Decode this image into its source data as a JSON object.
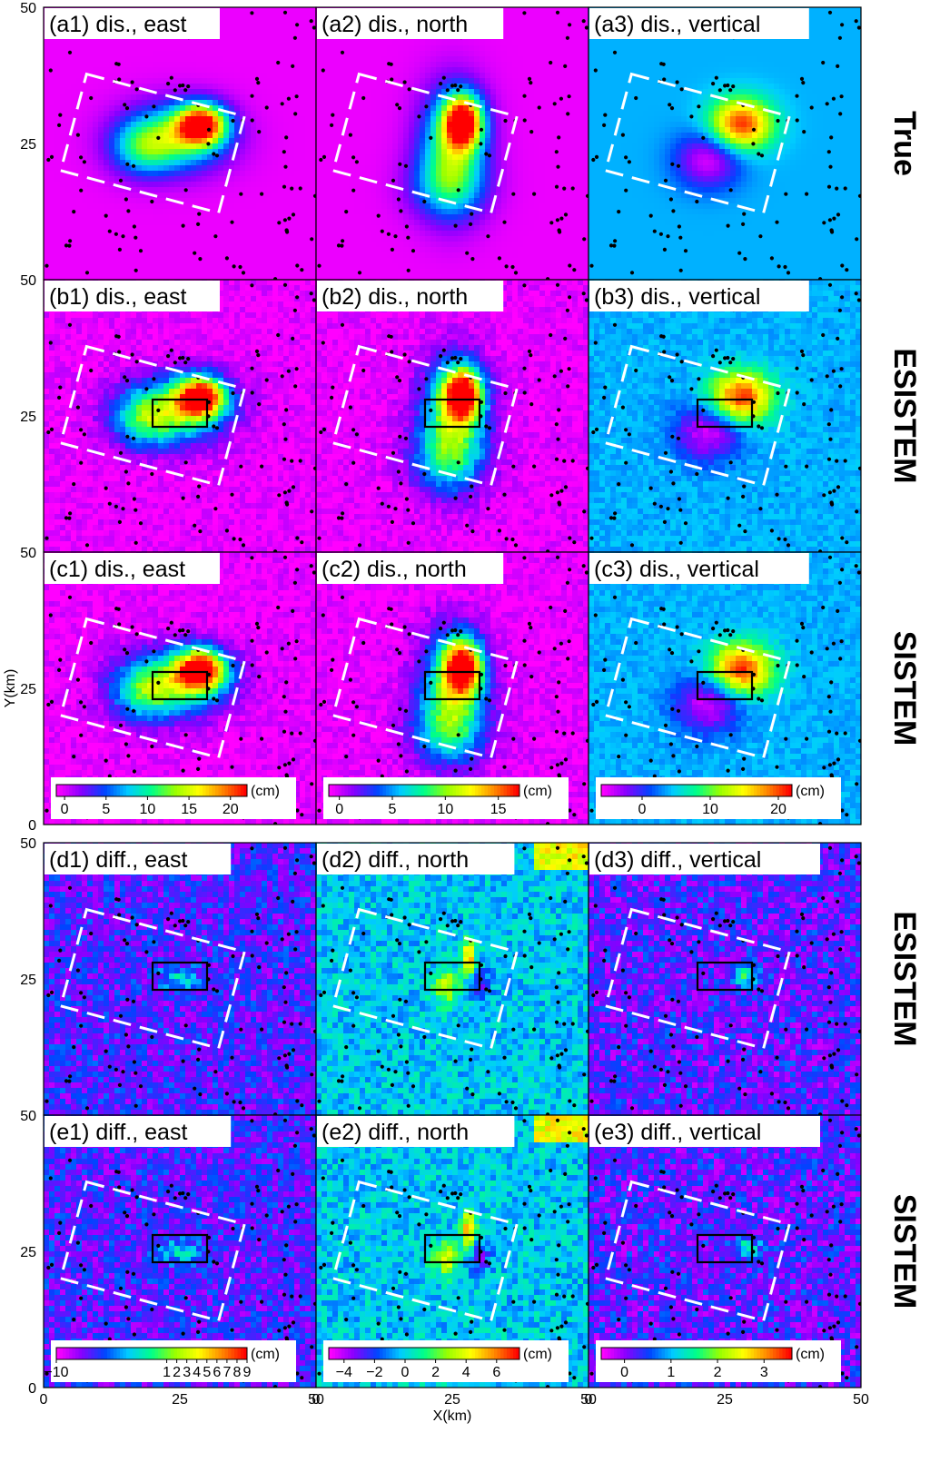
{
  "chart_data": {
    "type": "heatmap",
    "description_rows": [
      "True",
      "ESISTEM",
      "SISTEM",
      "ESISTEM",
      "SISTEM"
    ],
    "axes": {
      "xlabel": "X(km)",
      "ylabel": "Y(km)",
      "xlim": [
        0,
        50
      ],
      "ylim": [
        0,
        50
      ],
      "x_ticks": [
        "0",
        "25",
        "50"
      ],
      "y_ticks": [
        "0",
        "25",
        "50"
      ]
    },
    "panels": [
      {
        "id": "a1",
        "title": "(a1) dis., east",
        "kind": "east",
        "row": 0,
        "col": 0
      },
      {
        "id": "a2",
        "title": "(a2) dis., north",
        "kind": "north",
        "row": 0,
        "col": 1
      },
      {
        "id": "a3",
        "title": "(a3) dis., vertical",
        "kind": "vertical",
        "row": 0,
        "col": 2
      },
      {
        "id": "b1",
        "title": "(b1) dis., east",
        "kind": "east",
        "row": 1,
        "col": 0,
        "fault_box": true
      },
      {
        "id": "b2",
        "title": "(b2) dis., north",
        "kind": "north",
        "row": 1,
        "col": 1,
        "fault_box": true
      },
      {
        "id": "b3",
        "title": "(b3) dis., vertical",
        "kind": "vertical",
        "row": 1,
        "col": 2,
        "fault_box": true
      },
      {
        "id": "c1",
        "title": "(c1) dis., east",
        "kind": "east",
        "row": 2,
        "col": 0,
        "fault_box": true
      },
      {
        "id": "c2",
        "title": "(c2) dis., north",
        "kind": "north",
        "row": 2,
        "col": 1,
        "fault_box": true
      },
      {
        "id": "c3",
        "title": "(c3) dis., vertical",
        "kind": "vertical",
        "row": 2,
        "col": 2,
        "fault_box": true
      },
      {
        "id": "d1",
        "title": "(d1) diff., east",
        "kind": "diff_east",
        "row": 3,
        "col": 0,
        "fault_box": true
      },
      {
        "id": "d2",
        "title": "(d2) diff., north",
        "kind": "diff_north",
        "row": 3,
        "col": 1,
        "fault_box": true
      },
      {
        "id": "d3",
        "title": "(d3) diff., vertical",
        "kind": "diff_vertical",
        "row": 3,
        "col": 2,
        "fault_box": true
      },
      {
        "id": "e1",
        "title": "(e1) diff., east",
        "kind": "diff_east",
        "row": 4,
        "col": 0,
        "fault_box": true
      },
      {
        "id": "e2",
        "title": "(e2) diff., north",
        "kind": "diff_north",
        "row": 4,
        "col": 1,
        "fault_box": true
      },
      {
        "id": "e3",
        "title": "(e3) diff., vertical",
        "kind": "diff_vertical",
        "row": 4,
        "col": 2,
        "fault_box": true
      }
    ],
    "colorbars": [
      {
        "id": "cb_dis_east",
        "unit": "(cm)",
        "ticks": [
          0,
          5,
          10,
          15,
          20
        ],
        "range": [
          -1,
          22
        ]
      },
      {
        "id": "cb_dis_north",
        "unit": "(cm)",
        "ticks": [
          0,
          5,
          10,
          15
        ],
        "range": [
          -1,
          17
        ]
      },
      {
        "id": "cb_dis_vertical",
        "unit": "(cm)",
        "ticks": [
          0,
          10,
          20
        ],
        "range": [
          -6,
          22
        ]
      },
      {
        "id": "cb_diff_east",
        "unit": "(cm)",
        "ticks": [
          -10,
          1,
          2,
          3,
          4,
          5,
          6,
          7,
          8,
          9
        ],
        "range": [
          -10,
          9
        ]
      },
      {
        "id": "cb_diff_north",
        "unit": "(cm)",
        "ticks": [
          -4,
          -2,
          0,
          2,
          4,
          6
        ],
        "range": [
          -5,
          7.5
        ]
      },
      {
        "id": "cb_diff_vertical",
        "unit": "(cm)",
        "ticks": [
          0,
          1,
          2,
          3
        ],
        "range": [
          -0.5,
          3.6
        ]
      }
    ],
    "colormap": [
      "#ff00ff",
      "#8800ff",
      "#0044ff",
      "#00ccff",
      "#00ff88",
      "#99ff00",
      "#ffff00",
      "#ff8800",
      "#ff0000"
    ]
  }
}
